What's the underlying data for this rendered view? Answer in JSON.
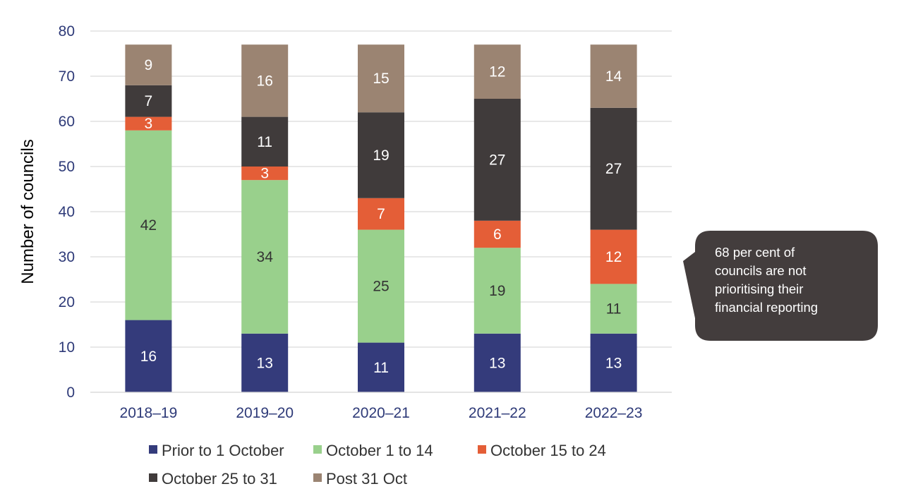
{
  "chart_data": {
    "type": "bar",
    "stacked": true,
    "title": "",
    "xlabel": "",
    "ylabel": "Number of councils",
    "ylim": [
      0,
      80
    ],
    "yticks": [
      0,
      10,
      20,
      30,
      40,
      50,
      60,
      70,
      80
    ],
    "grid": true,
    "legend_position": "bottom",
    "categories": [
      "2018–19",
      "2019–20",
      "2020–21",
      "2021–22",
      "2022–23"
    ],
    "series": [
      {
        "name": "Prior to 1 October",
        "color": "#343B7B",
        "label_color": "#ffffff",
        "values": [
          16,
          13,
          11,
          13,
          13
        ]
      },
      {
        "name": "October 1 to 14",
        "color": "#99D08C",
        "label_color": "#333333",
        "values": [
          42,
          34,
          25,
          19,
          11
        ]
      },
      {
        "name": "October 15 to 24",
        "color": "#E45E37",
        "label_color": "#ffffff",
        "values": [
          3,
          3,
          7,
          6,
          12
        ]
      },
      {
        "name": "October 25 to 31",
        "color": "#403B3B",
        "label_color": "#ffffff",
        "values": [
          7,
          11,
          19,
          27,
          27
        ]
      },
      {
        "name": "Post 31 Oct",
        "color": "#9B8472",
        "label_color": "#ffffff",
        "values": [
          9,
          16,
          15,
          12,
          14
        ]
      }
    ],
    "annotation": {
      "text": "68 per cent of councils are not prioritising their financial reporting",
      "lines": [
        "68 per cent of",
        "councils are not",
        "prioritising their",
        "financial reporting"
      ],
      "color": "#433D3D"
    }
  }
}
